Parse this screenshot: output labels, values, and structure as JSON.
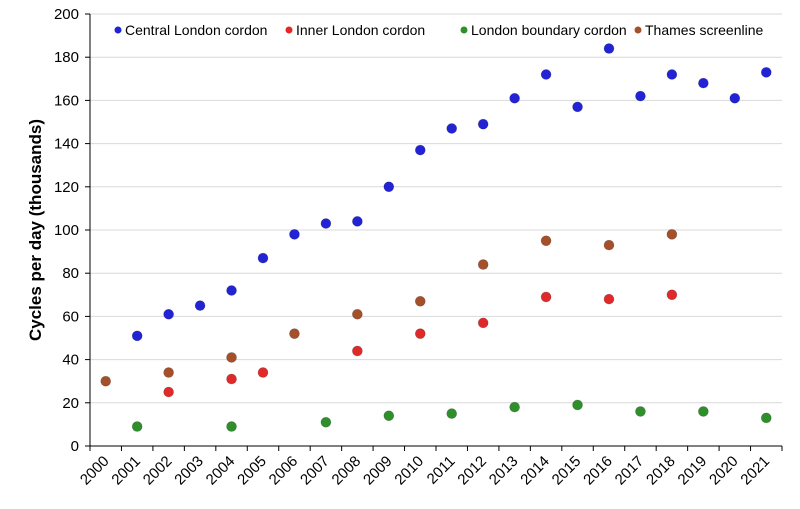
{
  "chart_data": {
    "type": "scatter",
    "title": "",
    "xlabel": "",
    "ylabel": "Cycles per day (thousands)",
    "ylim": [
      0,
      200
    ],
    "yticks": [
      0,
      20,
      40,
      60,
      80,
      100,
      120,
      140,
      160,
      180,
      200
    ],
    "categories": [
      "2000",
      "2001",
      "2002",
      "2003",
      "2004",
      "2005",
      "2006",
      "2007",
      "2008",
      "2009",
      "2010",
      "2011",
      "2012",
      "2013",
      "2014",
      "2015",
      "2016",
      "2017",
      "2018",
      "2019",
      "2020",
      "2021"
    ],
    "grid": "horizontal",
    "legend_position": "top",
    "series": [
      {
        "name": "Central London cordon",
        "color": "#2323d6",
        "points": [
          {
            "x": "2001",
            "y": 51
          },
          {
            "x": "2002",
            "y": 61
          },
          {
            "x": "2003",
            "y": 65
          },
          {
            "x": "2004",
            "y": 72
          },
          {
            "x": "2005",
            "y": 87
          },
          {
            "x": "2006",
            "y": 98
          },
          {
            "x": "2007",
            "y": 103
          },
          {
            "x": "2008",
            "y": 104
          },
          {
            "x": "2009",
            "y": 120
          },
          {
            "x": "2010",
            "y": 137
          },
          {
            "x": "2011",
            "y": 147
          },
          {
            "x": "2012",
            "y": 149
          },
          {
            "x": "2013",
            "y": 161
          },
          {
            "x": "2014",
            "y": 172
          },
          {
            "x": "2015",
            "y": 157
          },
          {
            "x": "2016",
            "y": 184
          },
          {
            "x": "2017",
            "y": 162
          },
          {
            "x": "2018",
            "y": 172
          },
          {
            "x": "2019",
            "y": 168
          },
          {
            "x": "2020",
            "y": 161
          },
          {
            "x": "2021",
            "y": 173
          }
        ]
      },
      {
        "name": "Inner London cordon",
        "color": "#e02a2a",
        "points": [
          {
            "x": "2002",
            "y": 25
          },
          {
            "x": "2004",
            "y": 31
          },
          {
            "x": "2005",
            "y": 34
          },
          {
            "x": "2008",
            "y": 44
          },
          {
            "x": "2010",
            "y": 52
          },
          {
            "x": "2012",
            "y": 57
          },
          {
            "x": "2014",
            "y": 69
          },
          {
            "x": "2016",
            "y": 68
          },
          {
            "x": "2018",
            "y": 70
          }
        ]
      },
      {
        "name": "London boundary cordon",
        "color": "#2f8f2a",
        "points": [
          {
            "x": "2001",
            "y": 9
          },
          {
            "x": "2004",
            "y": 9
          },
          {
            "x": "2007",
            "y": 11
          },
          {
            "x": "2009",
            "y": 14
          },
          {
            "x": "2011",
            "y": 15
          },
          {
            "x": "2013",
            "y": 18
          },
          {
            "x": "2015",
            "y": 19
          },
          {
            "x": "2017",
            "y": 16
          },
          {
            "x": "2019",
            "y": 16
          },
          {
            "x": "2021",
            "y": 13
          }
        ]
      },
      {
        "name": "Thames screenline",
        "color": "#a5502a",
        "points": [
          {
            "x": "2000",
            "y": 30
          },
          {
            "x": "2002",
            "y": 34
          },
          {
            "x": "2004",
            "y": 41
          },
          {
            "x": "2006",
            "y": 52
          },
          {
            "x": "2008",
            "y": 61
          },
          {
            "x": "2010",
            "y": 67
          },
          {
            "x": "2012",
            "y": 84
          },
          {
            "x": "2014",
            "y": 95
          },
          {
            "x": "2016",
            "y": 93
          },
          {
            "x": "2018",
            "y": 98
          }
        ]
      }
    ]
  }
}
